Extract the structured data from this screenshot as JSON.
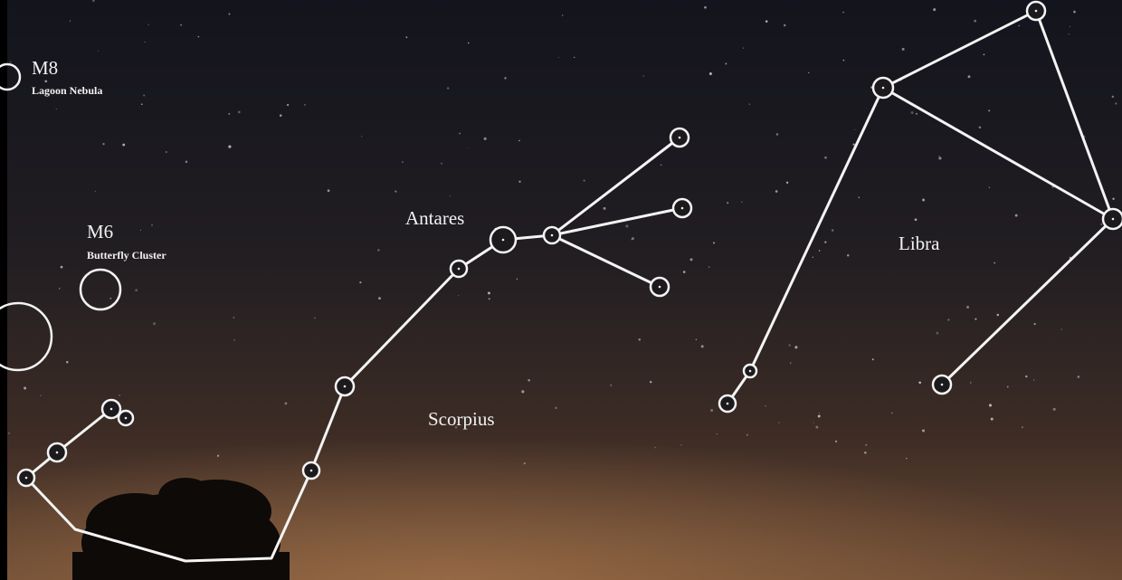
{
  "labels": {
    "m8": {
      "title": "M8",
      "subtitle": "Lagoon Nebula"
    },
    "m6": {
      "title": "M6",
      "subtitle": "Butterfly Cluster"
    },
    "antares": "Antares",
    "scorpius": "Scorpius",
    "libra": "Libra"
  }
}
